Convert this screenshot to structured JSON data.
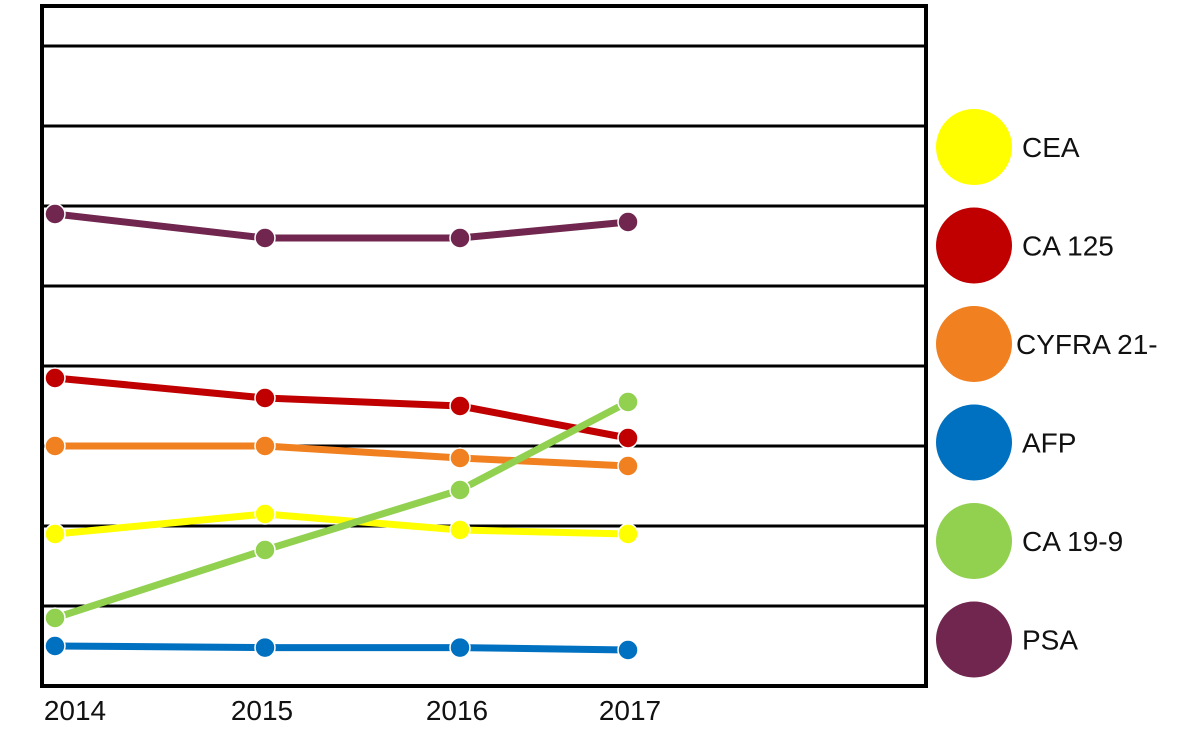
{
  "chart_data": {
    "type": "line",
    "title": "",
    "xlabel": "",
    "ylabel": "",
    "categories": [
      "2014",
      "2015",
      "2016",
      "2017"
    ],
    "x_positions": [
      2014,
      2015,
      2016,
      2017
    ],
    "ylim": [
      0,
      8.5
    ],
    "grid": true,
    "gridlines_y": [
      1,
      2,
      3,
      4,
      5,
      6,
      7,
      8
    ],
    "legend_position": "right",
    "series": [
      {
        "name": "CEA",
        "color": "#FFFF00",
        "values": [
          1.9,
          2.15,
          1.95,
          1.9
        ]
      },
      {
        "name": "CA 125",
        "color": "#C00000",
        "values": [
          3.85,
          3.6,
          3.5,
          3.1
        ]
      },
      {
        "name": "CYFRA 21-",
        "color": "#F08020",
        "values": [
          3.0,
          3.0,
          2.85,
          2.75
        ]
      },
      {
        "name": "AFP",
        "color": "#0070C0",
        "values": [
          0.5,
          0.48,
          0.48,
          0.45
        ]
      },
      {
        "name": "CA 19-9",
        "color": "#92D050",
        "values": [
          0.85,
          1.7,
          2.45,
          3.55
        ]
      },
      {
        "name": "PSA",
        "color": "#70264E",
        "values": [
          5.9,
          5.6,
          5.6,
          5.8
        ]
      }
    ]
  }
}
